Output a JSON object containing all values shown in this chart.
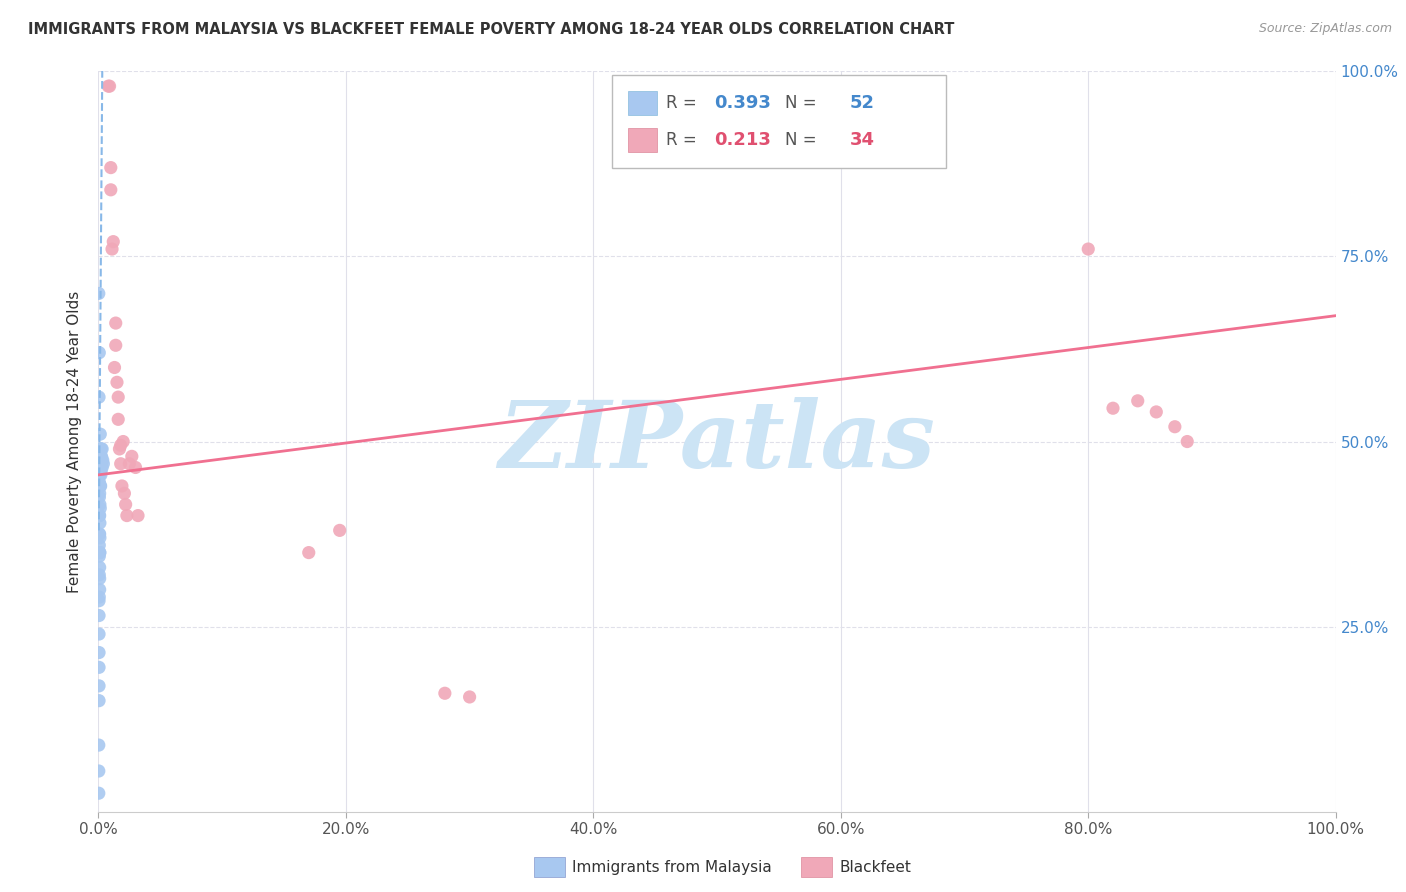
{
  "title": "IMMIGRANTS FROM MALAYSIA VS BLACKFEET FEMALE POVERTY AMONG 18-24 YEAR OLDS CORRELATION CHART",
  "source": "Source: ZipAtlas.com",
  "ylabel": "Female Poverty Among 18-24 Year Olds",
  "blue_R": 0.393,
  "blue_N": 52,
  "pink_R": 0.213,
  "pink_N": 34,
  "blue_color": "#a8c8f0",
  "pink_color": "#f0a8b8",
  "blue_line_color": "#88b8e8",
  "pink_line_color": "#f07090",
  "watermark": "ZIPatlas",
  "watermark_color": "#cce4f5",
  "background_color": "#ffffff",
  "grid_color": "#e0e0ea",
  "blue_x": [
    0.0003,
    0.0003,
    0.0003,
    0.0003,
    0.0005,
    0.0005,
    0.0005,
    0.0005,
    0.0005,
    0.0005,
    0.0005,
    0.0005,
    0.0007,
    0.0007,
    0.0007,
    0.0007,
    0.0007,
    0.0008,
    0.0008,
    0.0008,
    0.0008,
    0.001,
    0.001,
    0.001,
    0.001,
    0.001,
    0.001,
    0.001,
    0.001,
    0.001,
    0.0012,
    0.0012,
    0.0012,
    0.0012,
    0.0012,
    0.0015,
    0.0015,
    0.0015,
    0.0015,
    0.0015,
    0.0018,
    0.0018,
    0.0018,
    0.002,
    0.002,
    0.0022,
    0.0022,
    0.0025,
    0.003,
    0.003,
    0.0035,
    0.004
  ],
  "blue_y": [
    0.025,
    0.055,
    0.09,
    0.7,
    0.15,
    0.17,
    0.195,
    0.215,
    0.24,
    0.265,
    0.285,
    0.56,
    0.29,
    0.32,
    0.345,
    0.36,
    0.62,
    0.375,
    0.4,
    0.425,
    0.445,
    0.3,
    0.315,
    0.33,
    0.35,
    0.375,
    0.4,
    0.43,
    0.455,
    0.49,
    0.35,
    0.37,
    0.39,
    0.415,
    0.44,
    0.41,
    0.44,
    0.46,
    0.485,
    0.51,
    0.44,
    0.465,
    0.49,
    0.455,
    0.48,
    0.46,
    0.49,
    0.48,
    0.465,
    0.49,
    0.475,
    0.47
  ],
  "pink_x": [
    0.008,
    0.009,
    0.01,
    0.01,
    0.011,
    0.012,
    0.013,
    0.014,
    0.014,
    0.015,
    0.016,
    0.016,
    0.017,
    0.018,
    0.018,
    0.019,
    0.02,
    0.021,
    0.022,
    0.023,
    0.025,
    0.027,
    0.03,
    0.032,
    0.17,
    0.195,
    0.28,
    0.3,
    0.8,
    0.82,
    0.84,
    0.855,
    0.87,
    0.88
  ],
  "pink_y": [
    0.98,
    0.98,
    0.87,
    0.84,
    0.76,
    0.77,
    0.6,
    0.66,
    0.63,
    0.58,
    0.56,
    0.53,
    0.49,
    0.495,
    0.47,
    0.44,
    0.5,
    0.43,
    0.415,
    0.4,
    0.47,
    0.48,
    0.465,
    0.4,
    0.35,
    0.38,
    0.16,
    0.155,
    0.76,
    0.545,
    0.555,
    0.54,
    0.52,
    0.5
  ],
  "pink_line_x0": 0.0,
  "pink_line_x1": 1.0,
  "pink_line_y0": 0.455,
  "pink_line_y1": 0.67,
  "blue_line_x0": 0.0003,
  "blue_line_x1": 0.0032,
  "blue_line_y0": 0.38,
  "blue_line_y1": 1.02,
  "xlim": [
    0.0,
    1.0
  ],
  "ylim": [
    0.0,
    1.0
  ],
  "xtick_pos": [
    0.0,
    0.2,
    0.4,
    0.6,
    0.8,
    1.0
  ],
  "xtick_labels": [
    "0.0%",
    "20.0%",
    "40.0%",
    "60.0%",
    "80.0%",
    "100.0%"
  ],
  "ytick_pos": [
    0.25,
    0.5,
    0.75,
    1.0
  ],
  "ytick_labels": [
    "25.0%",
    "50.0%",
    "75.0%",
    "100.0%"
  ]
}
